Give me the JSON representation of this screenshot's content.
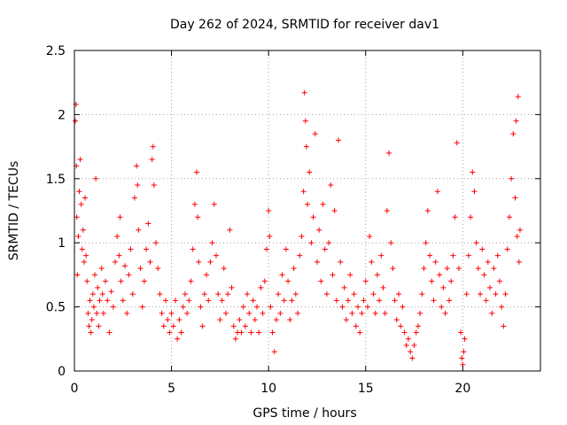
{
  "chart_data": {
    "type": "scatter",
    "title": "Day 262 of 2024, SRMTID for receiver dav1",
    "xlabel": "GPS time / hours",
    "ylabel": "SRMTID / TECUs",
    "xlim": [
      0,
      24
    ],
    "ylim": [
      0,
      2.5
    ],
    "xticks": [
      0,
      5,
      10,
      15,
      20
    ],
    "xtick_labels": [
      "0",
      "5",
      "10",
      "15",
      "20"
    ],
    "yticks": [
      0,
      0.5,
      1,
      1.5,
      2,
      2.5
    ],
    "ytick_labels": [
      "0",
      "0.5",
      "1",
      "1.5",
      "2",
      "2.5"
    ],
    "grid": true,
    "marker": "+",
    "color": "#ff0000",
    "series": [
      {
        "name": "SRMTID",
        "points": [
          [
            0.05,
            1.95
          ],
          [
            0.08,
            2.08
          ],
          [
            0.1,
            1.6
          ],
          [
            0.12,
            1.2
          ],
          [
            0.15,
            0.75
          ],
          [
            0.2,
            1.05
          ],
          [
            0.25,
            1.4
          ],
          [
            0.3,
            1.65
          ],
          [
            0.35,
            1.3
          ],
          [
            0.4,
            0.95
          ],
          [
            0.45,
            1.1
          ],
          [
            0.5,
            0.85
          ],
          [
            0.55,
            1.35
          ],
          [
            0.6,
            0.9
          ],
          [
            0.65,
            0.7
          ],
          [
            0.7,
            0.45
          ],
          [
            0.75,
            0.35
          ],
          [
            0.8,
            0.55
          ],
          [
            0.85,
            0.3
          ],
          [
            0.9,
            0.4
          ],
          [
            0.95,
            0.6
          ],
          [
            1.0,
            0.5
          ],
          [
            1.05,
            0.75
          ],
          [
            1.1,
            1.5
          ],
          [
            1.15,
            0.45
          ],
          [
            1.2,
            0.65
          ],
          [
            1.25,
            0.35
          ],
          [
            1.3,
            0.55
          ],
          [
            1.4,
            0.8
          ],
          [
            1.45,
            0.6
          ],
          [
            1.5,
            0.45
          ],
          [
            1.6,
            0.7
          ],
          [
            1.7,
            0.55
          ],
          [
            1.8,
            0.3
          ],
          [
            1.9,
            0.62
          ],
          [
            2.0,
            0.5
          ],
          [
            2.1,
            0.85
          ],
          [
            2.2,
            1.05
          ],
          [
            2.3,
            0.9
          ],
          [
            2.35,
            1.2
          ],
          [
            2.4,
            0.7
          ],
          [
            2.5,
            0.55
          ],
          [
            2.6,
            0.82
          ],
          [
            2.7,
            0.45
          ],
          [
            2.8,
            0.75
          ],
          [
            2.9,
            0.95
          ],
          [
            3.0,
            0.6
          ],
          [
            3.1,
            1.35
          ],
          [
            3.2,
            1.6
          ],
          [
            3.25,
            1.45
          ],
          [
            3.3,
            1.1
          ],
          [
            3.4,
            0.8
          ],
          [
            3.5,
            0.5
          ],
          [
            3.6,
            0.7
          ],
          [
            3.7,
            0.95
          ],
          [
            3.8,
            1.15
          ],
          [
            3.9,
            0.85
          ],
          [
            4.0,
            1.65
          ],
          [
            4.05,
            1.75
          ],
          [
            4.1,
            1.45
          ],
          [
            4.2,
            1.0
          ],
          [
            4.3,
            0.8
          ],
          [
            4.4,
            0.6
          ],
          [
            4.5,
            0.45
          ],
          [
            4.6,
            0.35
          ],
          [
            4.7,
            0.55
          ],
          [
            4.8,
            0.4
          ],
          [
            4.9,
            0.3
          ],
          [
            5.0,
            0.45
          ],
          [
            5.1,
            0.35
          ],
          [
            5.2,
            0.55
          ],
          [
            5.3,
            0.25
          ],
          [
            5.4,
            0.4
          ],
          [
            5.5,
            0.3
          ],
          [
            5.6,
            0.5
          ],
          [
            5.7,
            0.6
          ],
          [
            5.8,
            0.45
          ],
          [
            5.9,
            0.55
          ],
          [
            6.0,
            0.7
          ],
          [
            6.1,
            0.95
          ],
          [
            6.2,
            1.3
          ],
          [
            6.3,
            1.55
          ],
          [
            6.35,
            1.2
          ],
          [
            6.4,
            0.85
          ],
          [
            6.5,
            0.5
          ],
          [
            6.6,
            0.35
          ],
          [
            6.7,
            0.6
          ],
          [
            6.8,
            0.75
          ],
          [
            6.9,
            0.55
          ],
          [
            7.0,
            0.85
          ],
          [
            7.1,
            1.0
          ],
          [
            7.2,
            1.3
          ],
          [
            7.3,
            0.9
          ],
          [
            7.4,
            0.6
          ],
          [
            7.5,
            0.4
          ],
          [
            7.6,
            0.55
          ],
          [
            7.7,
            0.8
          ],
          [
            7.8,
            0.45
          ],
          [
            7.9,
            0.6
          ],
          [
            8.0,
            1.1
          ],
          [
            8.1,
            0.65
          ],
          [
            8.2,
            0.35
          ],
          [
            8.3,
            0.25
          ],
          [
            8.4,
            0.3
          ],
          [
            8.5,
            0.4
          ],
          [
            8.6,
            0.3
          ],
          [
            8.7,
            0.5
          ],
          [
            8.8,
            0.35
          ],
          [
            8.9,
            0.6
          ],
          [
            9.0,
            0.45
          ],
          [
            9.1,
            0.3
          ],
          [
            9.2,
            0.55
          ],
          [
            9.3,
            0.4
          ],
          [
            9.4,
            0.5
          ],
          [
            9.5,
            0.3
          ],
          [
            9.6,
            0.65
          ],
          [
            9.7,
            0.45
          ],
          [
            9.8,
            0.7
          ],
          [
            9.9,
            0.95
          ],
          [
            10.0,
            1.25
          ],
          [
            10.05,
            1.05
          ],
          [
            10.1,
            0.5
          ],
          [
            10.2,
            0.3
          ],
          [
            10.3,
            0.15
          ],
          [
            10.4,
            0.4
          ],
          [
            10.5,
            0.6
          ],
          [
            10.6,
            0.45
          ],
          [
            10.7,
            0.75
          ],
          [
            10.8,
            0.55
          ],
          [
            10.9,
            0.95
          ],
          [
            11.0,
            0.7
          ],
          [
            11.1,
            0.4
          ],
          [
            11.2,
            0.55
          ],
          [
            11.3,
            0.8
          ],
          [
            11.4,
            0.6
          ],
          [
            11.5,
            0.45
          ],
          [
            11.6,
            0.9
          ],
          [
            11.7,
            1.05
          ],
          [
            11.8,
            1.4
          ],
          [
            11.85,
            2.17
          ],
          [
            11.9,
            1.95
          ],
          [
            11.95,
            1.75
          ],
          [
            12.0,
            1.3
          ],
          [
            12.1,
            1.55
          ],
          [
            12.2,
            1.0
          ],
          [
            12.3,
            1.2
          ],
          [
            12.4,
            1.85
          ],
          [
            12.5,
            0.85
          ],
          [
            12.6,
            1.1
          ],
          [
            12.7,
            0.7
          ],
          [
            12.8,
            1.3
          ],
          [
            12.9,
            0.95
          ],
          [
            13.0,
            0.6
          ],
          [
            13.1,
            1.0
          ],
          [
            13.2,
            1.45
          ],
          [
            13.3,
            0.75
          ],
          [
            13.4,
            1.25
          ],
          [
            13.5,
            0.55
          ],
          [
            13.6,
            1.8
          ],
          [
            13.7,
            0.85
          ],
          [
            13.8,
            0.5
          ],
          [
            13.9,
            0.65
          ],
          [
            14.0,
            0.4
          ],
          [
            14.1,
            0.55
          ],
          [
            14.2,
            0.75
          ],
          [
            14.3,
            0.45
          ],
          [
            14.4,
            0.6
          ],
          [
            14.5,
            0.35
          ],
          [
            14.6,
            0.5
          ],
          [
            14.7,
            0.3
          ],
          [
            14.8,
            0.45
          ],
          [
            14.9,
            0.55
          ],
          [
            15.0,
            0.7
          ],
          [
            15.1,
            0.5
          ],
          [
            15.2,
            1.05
          ],
          [
            15.3,
            0.85
          ],
          [
            15.4,
            0.6
          ],
          [
            15.5,
            0.45
          ],
          [
            15.6,
            0.75
          ],
          [
            15.7,
            0.55
          ],
          [
            15.8,
            0.9
          ],
          [
            15.9,
            0.65
          ],
          [
            16.0,
            0.45
          ],
          [
            16.1,
            1.25
          ],
          [
            16.2,
            1.7
          ],
          [
            16.3,
            1.0
          ],
          [
            16.4,
            0.8
          ],
          [
            16.5,
            0.55
          ],
          [
            16.6,
            0.4
          ],
          [
            16.7,
            0.6
          ],
          [
            16.8,
            0.35
          ],
          [
            16.9,
            0.5
          ],
          [
            17.0,
            0.3
          ],
          [
            17.1,
            0.2
          ],
          [
            17.2,
            0.25
          ],
          [
            17.3,
            0.15
          ],
          [
            17.4,
            0.1
          ],
          [
            17.5,
            0.2
          ],
          [
            17.6,
            0.3
          ],
          [
            17.7,
            0.35
          ],
          [
            17.8,
            0.45
          ],
          [
            17.9,
            0.6
          ],
          [
            18.0,
            0.8
          ],
          [
            18.1,
            1.0
          ],
          [
            18.2,
            1.25
          ],
          [
            18.3,
            0.9
          ],
          [
            18.4,
            0.7
          ],
          [
            18.5,
            0.55
          ],
          [
            18.6,
            0.85
          ],
          [
            18.7,
            1.4
          ],
          [
            18.8,
            0.75
          ],
          [
            18.9,
            0.5
          ],
          [
            19.0,
            0.65
          ],
          [
            19.1,
            0.45
          ],
          [
            19.2,
            0.8
          ],
          [
            19.3,
            0.55
          ],
          [
            19.4,
            0.7
          ],
          [
            19.5,
            0.9
          ],
          [
            19.6,
            1.2
          ],
          [
            19.7,
            1.78
          ],
          [
            19.8,
            0.8
          ],
          [
            19.9,
            0.3
          ],
          [
            19.95,
            0.1
          ],
          [
            20.0,
            0.05
          ],
          [
            20.05,
            0.15
          ],
          [
            20.1,
            0.25
          ],
          [
            20.2,
            0.6
          ],
          [
            20.3,
            0.9
          ],
          [
            20.4,
            1.2
          ],
          [
            20.5,
            1.55
          ],
          [
            20.6,
            1.4
          ],
          [
            20.7,
            1.0
          ],
          [
            20.8,
            0.8
          ],
          [
            20.9,
            0.6
          ],
          [
            21.0,
            0.95
          ],
          [
            21.1,
            0.75
          ],
          [
            21.2,
            0.55
          ],
          [
            21.3,
            0.85
          ],
          [
            21.4,
            0.65
          ],
          [
            21.5,
            0.45
          ],
          [
            21.6,
            0.8
          ],
          [
            21.7,
            0.6
          ],
          [
            21.8,
            0.9
          ],
          [
            21.9,
            0.7
          ],
          [
            22.0,
            0.5
          ],
          [
            22.1,
            0.35
          ],
          [
            22.2,
            0.6
          ],
          [
            22.3,
            0.95
          ],
          [
            22.4,
            1.2
          ],
          [
            22.5,
            1.5
          ],
          [
            22.6,
            1.85
          ],
          [
            22.7,
            1.35
          ],
          [
            22.75,
            1.95
          ],
          [
            22.8,
            1.05
          ],
          [
            22.85,
            2.14
          ],
          [
            22.9,
            0.85
          ],
          [
            22.95,
            1.1
          ]
        ]
      }
    ]
  }
}
